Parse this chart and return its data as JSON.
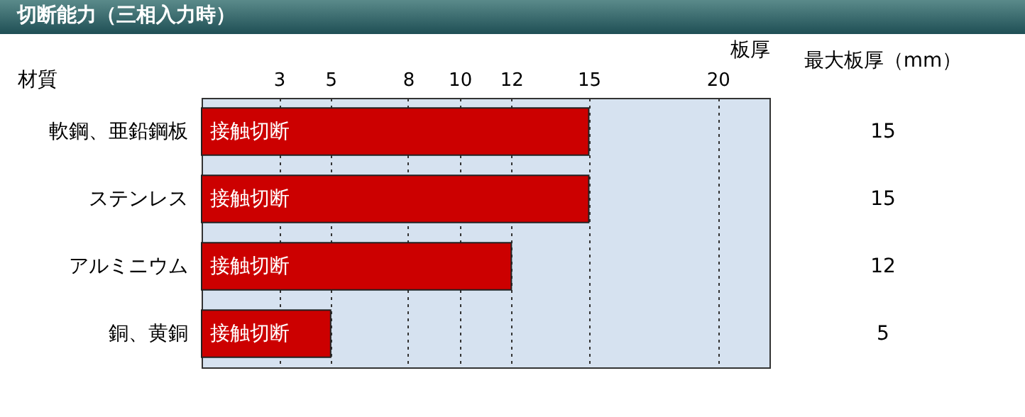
{
  "chart_data": {
    "type": "bar",
    "orientation": "horizontal",
    "title": "切断能力（三相入力時）",
    "xlabel": "板厚",
    "ylabel": "材質",
    "categories": [
      "軟鋼、亜鉛鋼板",
      "ステンレス",
      "アルミニウム",
      "銅、黄銅"
    ],
    "values": [
      15,
      15,
      12,
      5
    ],
    "color": "#cc0000",
    "xlim": [
      0,
      22
    ],
    "xticks": [
      3,
      5,
      8,
      10,
      12,
      15,
      20
    ],
    "grid": "x",
    "data_labels": true,
    "annotations": [
      {
        "text": "接触切断",
        "y": "軟鋼、亜鉛鋼板"
      },
      {
        "text": "接触切断",
        "y": "ステンレス"
      },
      {
        "text": "接触切断",
        "y": "アルミニウム"
      },
      {
        "text": "接触切断",
        "y": "銅、黄銅"
      },
      "最大板厚（mm）"
    ]
  }
}
